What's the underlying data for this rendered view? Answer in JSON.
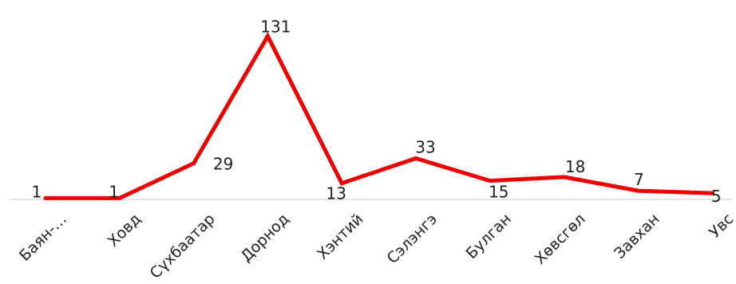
{
  "chart_data": {
    "type": "line",
    "title": "",
    "xlabel": "",
    "ylabel": "",
    "categories": [
      "Баян-…",
      "Ховд",
      "Сүхбаатар",
      "Дорнод",
      "Хэнтий",
      "Сэлэнгэ",
      "Булган",
      "Хөвсгөл",
      "Завхан",
      "Увс"
    ],
    "series": [
      {
        "values": [
          1,
          1,
          29,
          131,
          13,
          33,
          15,
          18,
          7,
          5
        ]
      }
    ],
    "ylim": [
      0,
      137
    ],
    "grid": false,
    "legend": "none",
    "colors": {
      "line": "#ee0000",
      "axis": "#d9d9d9",
      "text": "#222222"
    }
  }
}
